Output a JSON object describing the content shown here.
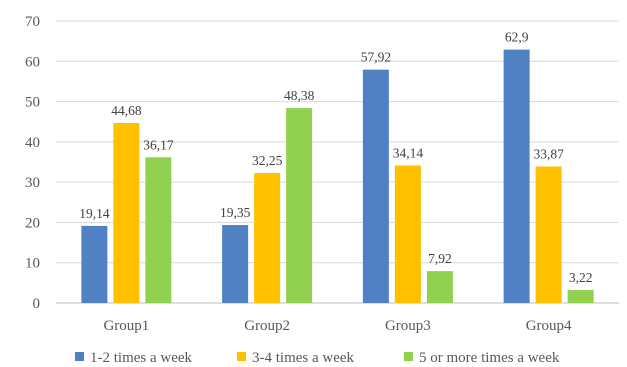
{
  "chart_data": {
    "type": "bar",
    "title": "",
    "xlabel": "",
    "ylabel": "",
    "categories": [
      "Group1",
      "Group2",
      "Group3",
      "Group4"
    ],
    "ylim": [
      0,
      70
    ],
    "yticks": [
      0,
      10,
      20,
      30,
      40,
      50,
      60,
      70
    ],
    "grid": true,
    "legend_position": "bottom",
    "series": [
      {
        "name": "1-2 times a week",
        "color": "#4f81c4",
        "values": [
          19.14,
          19.35,
          57.92,
          62.9
        ],
        "labels": [
          "19,14",
          "19,35",
          "57,92",
          "62,9"
        ]
      },
      {
        "name": "3-4 times a week",
        "color": "#ffc000",
        "values": [
          44.68,
          32.25,
          34.14,
          33.87
        ],
        "labels": [
          "44,68",
          "32,25",
          "34,14",
          "33,87"
        ]
      },
      {
        "name": "5 or more times a week",
        "color": "#92d050",
        "values": [
          36.17,
          48.38,
          7.92,
          3.22
        ],
        "labels": [
          "36,17",
          "48,38",
          "7,92",
          "3,22"
        ]
      }
    ]
  }
}
